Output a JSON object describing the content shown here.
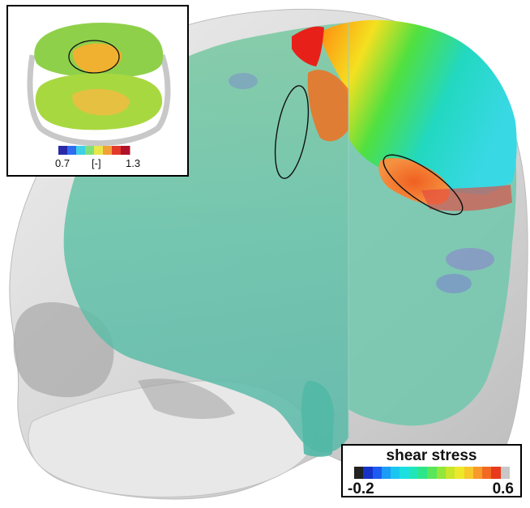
{
  "inset": {
    "colorbar_min": "0.7",
    "colorbar_unit": "[-]",
    "colorbar_max": "1.3",
    "colormap": [
      "#2a2aa8",
      "#2f6cf0",
      "#3fd0e6",
      "#7fe07a",
      "#e8e84a",
      "#f2a03a",
      "#e23a2a",
      "#b0122a"
    ]
  },
  "legend": {
    "title": "shear stress",
    "min": "-0.2",
    "max": "0.6",
    "colormap": [
      "#222222",
      "#1633c8",
      "#1d5cf2",
      "#1b9df5",
      "#19c6f0",
      "#1ce0e0",
      "#20e6b8",
      "#2ee68a",
      "#5ae65a",
      "#93e63a",
      "#c8e62a",
      "#eee82a",
      "#f6c82a",
      "#f79a2a",
      "#f26a22",
      "#e83a1c",
      "#c8c8c8"
    ]
  },
  "colors": {
    "skull": "#d8d8d8",
    "brain_translucent": "#4fc9a8",
    "stress_high": "#f06a1e",
    "stress_peak": "#e8201a",
    "stress_mid": "#e6e84a",
    "stress_low": "#36d6cc"
  }
}
